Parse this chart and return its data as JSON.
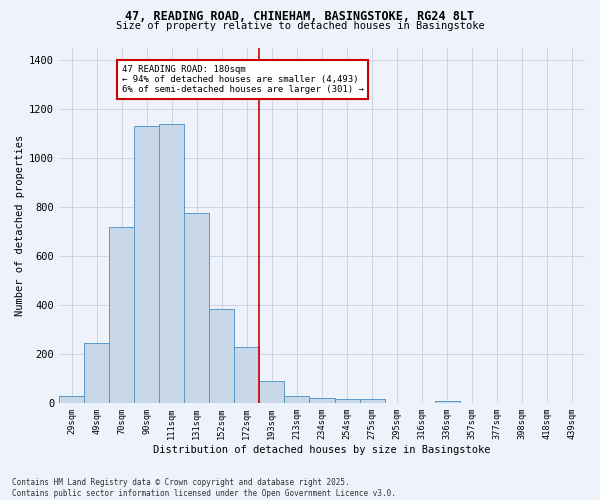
{
  "title_line1": "47, READING ROAD, CHINEHAM, BASINGSTOKE, RG24 8LT",
  "title_line2": "Size of property relative to detached houses in Basingstoke",
  "xlabel": "Distribution of detached houses by size in Basingstoke",
  "ylabel": "Number of detached properties",
  "categories": [
    "29sqm",
    "49sqm",
    "70sqm",
    "90sqm",
    "111sqm",
    "131sqm",
    "152sqm",
    "172sqm",
    "193sqm",
    "213sqm",
    "234sqm",
    "254sqm",
    "275sqm",
    "295sqm",
    "316sqm",
    "336sqm",
    "357sqm",
    "377sqm",
    "398sqm",
    "418sqm",
    "439sqm"
  ],
  "values": [
    30,
    245,
    720,
    1130,
    1140,
    775,
    385,
    230,
    90,
    30,
    20,
    15,
    15,
    0,
    0,
    10,
    0,
    0,
    0,
    0,
    0
  ],
  "bar_color": "#c8d8e8",
  "bar_edge_color": "#5599cc",
  "red_line_x": 7.5,
  "annotation_text": "47 READING ROAD: 180sqm\n← 94% of detached houses are smaller (4,493)\n6% of semi-detached houses are larger (301) →",
  "annotation_box_color": "#ffffff",
  "annotation_box_edge": "#cc0000",
  "red_line_color": "#cc0000",
  "ylim": [
    0,
    1450
  ],
  "yticks": [
    0,
    200,
    400,
    600,
    800,
    1000,
    1200,
    1400
  ],
  "footer_line1": "Contains HM Land Registry data © Crown copyright and database right 2025.",
  "footer_line2": "Contains public sector information licensed under the Open Government Licence v3.0.",
  "bg_color": "#eef2fa",
  "grid_color": "#c8cfe0"
}
